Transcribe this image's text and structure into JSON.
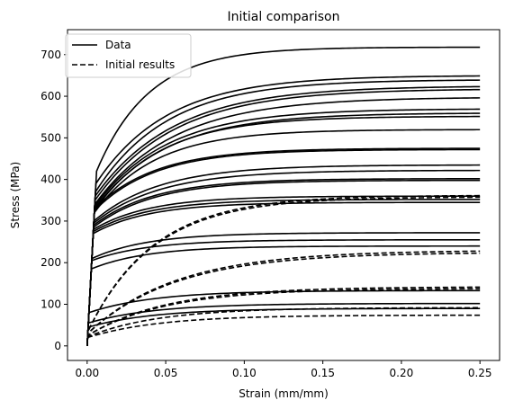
{
  "chart_data": {
    "type": "line",
    "title": "Initial comparison",
    "xlabel": "Strain (mm/mm)",
    "ylabel": "Stress (MPa)",
    "xlim": [
      -0.0125,
      0.2625
    ],
    "ylim": [
      -35,
      760
    ],
    "xticks": [
      0.0,
      0.05,
      0.1,
      0.15,
      0.2,
      0.25
    ],
    "xtick_labels": [
      "0.00",
      "0.05",
      "0.10",
      "0.15",
      "0.20",
      "0.25"
    ],
    "yticks": [
      0,
      100,
      200,
      300,
      400,
      500,
      600,
      700
    ],
    "ytick_labels": [
      "0",
      "100",
      "200",
      "300",
      "400",
      "500",
      "600",
      "700"
    ],
    "grid": false,
    "legend": {
      "placement": "top-left",
      "entries": [
        {
          "label": "Data",
          "style": "solid"
        },
        {
          "label": "Initial results",
          "style": "dashed"
        }
      ]
    },
    "color": "#000000",
    "series": [
      {
        "style": "solid",
        "yield": 420,
        "ult": 718,
        "k": 30
      },
      {
        "style": "solid",
        "yield": 390,
        "ult": 650,
        "k": 22
      },
      {
        "style": "solid",
        "yield": 370,
        "ult": 640,
        "k": 22
      },
      {
        "style": "solid",
        "yield": 360,
        "ult": 625,
        "k": 20
      },
      {
        "style": "solid",
        "yield": 350,
        "ult": 618,
        "k": 20
      },
      {
        "style": "solid",
        "yield": 340,
        "ult": 598,
        "k": 20
      },
      {
        "style": "solid",
        "yield": 335,
        "ult": 570,
        "k": 22
      },
      {
        "style": "solid",
        "yield": 330,
        "ult": 560,
        "k": 22
      },
      {
        "style": "solid",
        "yield": 325,
        "ult": 552,
        "k": 24
      },
      {
        "style": "solid",
        "yield": 320,
        "ult": 520,
        "k": 26
      },
      {
        "style": "solid",
        "yield": 330,
        "ult": 475,
        "k": 26
      },
      {
        "style": "solid",
        "yield": 325,
        "ult": 472,
        "k": 26
      },
      {
        "style": "solid",
        "yield": 300,
        "ult": 435,
        "k": 24
      },
      {
        "style": "solid",
        "yield": 295,
        "ult": 422,
        "k": 24
      },
      {
        "style": "solid",
        "yield": 290,
        "ult": 402,
        "k": 26
      },
      {
        "style": "solid",
        "yield": 285,
        "ult": 398,
        "k": 26
      },
      {
        "style": "solid",
        "yield": 280,
        "ult": 360,
        "k": 28
      },
      {
        "style": "solid",
        "yield": 275,
        "ult": 352,
        "k": 28
      },
      {
        "style": "solid",
        "yield": 270,
        "ult": 345,
        "k": 28
      },
      {
        "style": "solid",
        "yield": 210,
        "ult": 272,
        "k": 28
      },
      {
        "style": "solid",
        "yield": 205,
        "ult": 255,
        "k": 28
      },
      {
        "style": "solid",
        "yield": 185,
        "ult": 240,
        "k": 28
      },
      {
        "style": "solid",
        "yield": 80,
        "ult": 133,
        "k": 24
      },
      {
        "style": "solid",
        "yield": 55,
        "ult": 102,
        "k": 24
      },
      {
        "style": "solid",
        "yield": 45,
        "ult": 90,
        "k": 24
      },
      {
        "style": "dashed",
        "yield": 35,
        "ult": 362,
        "k": 24
      },
      {
        "style": "dashed",
        "yield": 35,
        "ult": 358,
        "k": 24
      },
      {
        "style": "dashed",
        "yield": 30,
        "ult": 230,
        "k": 18
      },
      {
        "style": "dashed",
        "yield": 30,
        "ult": 225,
        "k": 18
      },
      {
        "style": "dashed",
        "yield": 25,
        "ult": 142,
        "k": 20
      },
      {
        "style": "dashed",
        "yield": 25,
        "ult": 138,
        "k": 20
      },
      {
        "style": "dashed",
        "yield": 22,
        "ult": 92,
        "k": 22
      },
      {
        "style": "dashed",
        "yield": 20,
        "ult": 74,
        "k": 22
      }
    ]
  }
}
